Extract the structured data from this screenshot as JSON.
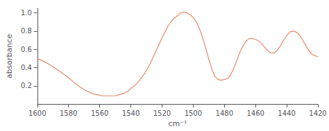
{
  "chart_data": {
    "type": "line",
    "xlabel": "cm⁻¹",
    "ylabel": "absorbance",
    "color": "#E8896A",
    "xlim": [
      1600,
      1420
    ],
    "ylim": [
      0.0,
      1.05
    ],
    "xticks": [
      1600,
      1580,
      1560,
      1540,
      1520,
      1500,
      1480,
      1460,
      1440,
      1420
    ],
    "yticks": [
      0.2,
      0.4,
      0.6,
      0.8,
      {
        "value": 1.0,
        "label": "1.0"
      }
    ],
    "grid": false,
    "x": [
      1600,
      1595,
      1590,
      1585,
      1580,
      1576,
      1572,
      1568,
      1564,
      1561,
      1558,
      1555,
      1552,
      1550,
      1548,
      1546,
      1544,
      1542,
      1540,
      1537,
      1534,
      1531,
      1528,
      1525,
      1522,
      1519,
      1516,
      1513,
      1510,
      1508,
      1506,
      1504,
      1502,
      1500,
      1498,
      1496,
      1494,
      1492,
      1490,
      1488,
      1486,
      1484,
      1482,
      1480,
      1478,
      1476,
      1474,
      1472,
      1470,
      1468,
      1466,
      1464,
      1462,
      1460,
      1458,
      1456,
      1454,
      1452,
      1450,
      1448,
      1446,
      1444,
      1442,
      1440,
      1438,
      1436,
      1434,
      1432,
      1430,
      1428,
      1426,
      1424,
      1422,
      1420
    ],
    "values": [
      0.5,
      0.46,
      0.41,
      0.35,
      0.29,
      0.23,
      0.18,
      0.14,
      0.11,
      0.1,
      0.09,
      0.09,
      0.09,
      0.09,
      0.1,
      0.11,
      0.12,
      0.14,
      0.17,
      0.21,
      0.27,
      0.34,
      0.43,
      0.54,
      0.65,
      0.76,
      0.86,
      0.93,
      0.97,
      1.0,
      1.01,
      1.0,
      0.98,
      0.95,
      0.9,
      0.83,
      0.73,
      0.62,
      0.49,
      0.38,
      0.3,
      0.27,
      0.26,
      0.27,
      0.28,
      0.32,
      0.39,
      0.48,
      0.57,
      0.64,
      0.69,
      0.72,
      0.72,
      0.71,
      0.69,
      0.66,
      0.62,
      0.58,
      0.56,
      0.56,
      0.59,
      0.64,
      0.7,
      0.75,
      0.79,
      0.8,
      0.79,
      0.76,
      0.71,
      0.65,
      0.59,
      0.55,
      0.53,
      0.52
    ]
  }
}
